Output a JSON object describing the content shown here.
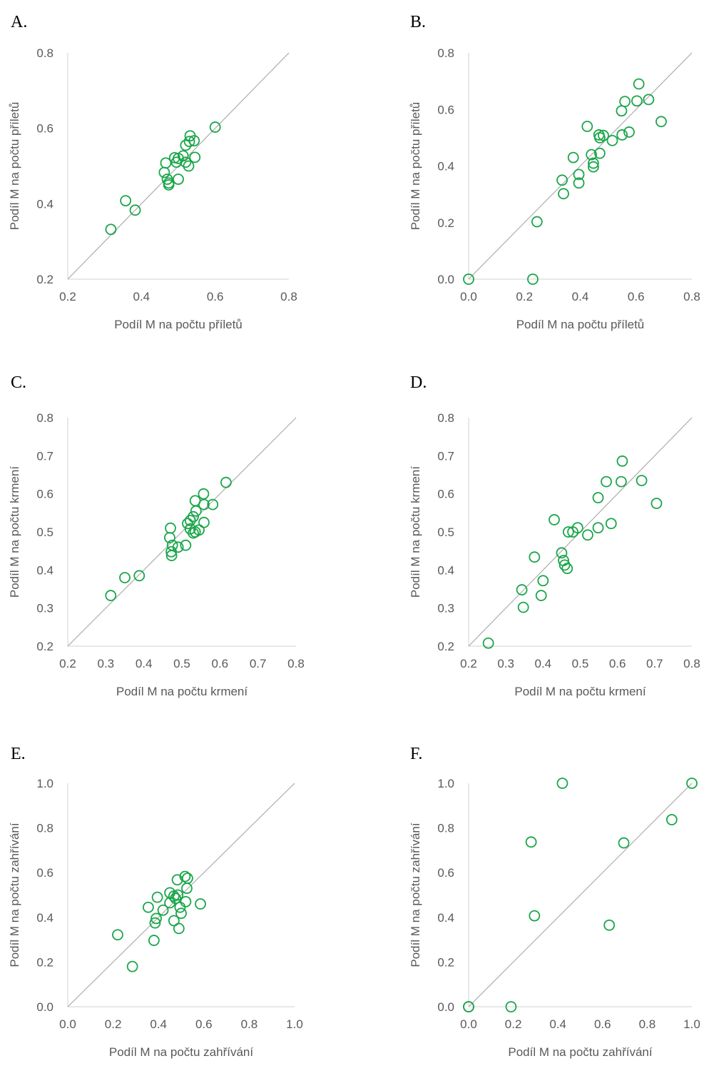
{
  "chart_data": [
    {
      "panel": "A.",
      "type": "scatter",
      "xlabel": "Podíl M na počtu příletů",
      "ylabel": "Podíl M na počtu příletů",
      "xlim": [
        0.2,
        0.8
      ],
      "ylim": [
        0.2,
        0.8
      ],
      "xticks": [
        "0.2",
        "0.4",
        "0.6",
        "0.8"
      ],
      "yticks": [
        "0.2",
        "0.4",
        "0.6",
        "0.8"
      ],
      "reference_line": "y = x",
      "points": [
        [
          0.6,
          0.603
        ],
        [
          0.532,
          0.58
        ],
        [
          0.543,
          0.567
        ],
        [
          0.53,
          0.565
        ],
        [
          0.52,
          0.555
        ],
        [
          0.5,
          0.52
        ],
        [
          0.49,
          0.522
        ],
        [
          0.513,
          0.527
        ],
        [
          0.545,
          0.523
        ],
        [
          0.495,
          0.51
        ],
        [
          0.52,
          0.51
        ],
        [
          0.528,
          0.5
        ],
        [
          0.466,
          0.508
        ],
        [
          0.462,
          0.483
        ],
        [
          0.47,
          0.465
        ],
        [
          0.5,
          0.465
        ],
        [
          0.474,
          0.455
        ],
        [
          0.474,
          0.45
        ],
        [
          0.357,
          0.408
        ],
        [
          0.383,
          0.383
        ],
        [
          0.317,
          0.332
        ]
      ]
    },
    {
      "panel": "B.",
      "type": "scatter",
      "xlabel": "Podíl M na počtu příletů",
      "ylabel": "Podíl M na počtu příletů",
      "xlim": [
        0.0,
        0.8
      ],
      "ylim": [
        0.0,
        0.8
      ],
      "xticks": [
        "0.0",
        "0.2",
        "0.4",
        "0.6",
        "0.8"
      ],
      "yticks": [
        "0.0",
        "0.2",
        "0.4",
        "0.6",
        "0.8"
      ],
      "reference_line": "y = x",
      "points": [
        [
          0.61,
          0.69
        ],
        [
          0.645,
          0.635
        ],
        [
          0.603,
          0.63
        ],
        [
          0.56,
          0.628
        ],
        [
          0.548,
          0.595
        ],
        [
          0.69,
          0.557
        ],
        [
          0.425,
          0.54
        ],
        [
          0.575,
          0.52
        ],
        [
          0.467,
          0.51
        ],
        [
          0.483,
          0.508
        ],
        [
          0.55,
          0.51
        ],
        [
          0.47,
          0.5
        ],
        [
          0.515,
          0.49
        ],
        [
          0.44,
          0.44
        ],
        [
          0.47,
          0.445
        ],
        [
          0.375,
          0.43
        ],
        [
          0.447,
          0.41
        ],
        [
          0.447,
          0.397
        ],
        [
          0.395,
          0.37
        ],
        [
          0.335,
          0.35
        ],
        [
          0.395,
          0.34
        ],
        [
          0.34,
          0.302
        ],
        [
          0.245,
          0.203
        ],
        [
          0.0,
          0.0
        ],
        [
          0.23,
          0.0
        ]
      ]
    },
    {
      "panel": "C.",
      "type": "scatter",
      "xlabel": "Podíl M na počtu krmení",
      "ylabel": "Podíl M na počtu krmení",
      "xlim": [
        0.2,
        0.8
      ],
      "ylim": [
        0.2,
        0.8
      ],
      "xticks": [
        "0.2",
        "0.3",
        "0.4",
        "0.5",
        "0.6",
        "0.7",
        "0.8"
      ],
      "yticks": [
        "0.2",
        "0.3",
        "0.4",
        "0.5",
        "0.6",
        "0.7",
        "0.8"
      ],
      "reference_line": "y = x",
      "points": [
        [
          0.616,
          0.63
        ],
        [
          0.557,
          0.6
        ],
        [
          0.535,
          0.582
        ],
        [
          0.581,
          0.572
        ],
        [
          0.558,
          0.572
        ],
        [
          0.537,
          0.555
        ],
        [
          0.53,
          0.54
        ],
        [
          0.522,
          0.53
        ],
        [
          0.558,
          0.525
        ],
        [
          0.515,
          0.522
        ],
        [
          0.47,
          0.51
        ],
        [
          0.522,
          0.508
        ],
        [
          0.545,
          0.505
        ],
        [
          0.535,
          0.5
        ],
        [
          0.53,
          0.497
        ],
        [
          0.468,
          0.485
        ],
        [
          0.51,
          0.465
        ],
        [
          0.475,
          0.465
        ],
        [
          0.49,
          0.46
        ],
        [
          0.472,
          0.448
        ],
        [
          0.473,
          0.438
        ],
        [
          0.388,
          0.385
        ],
        [
          0.35,
          0.38
        ],
        [
          0.313,
          0.333
        ]
      ]
    },
    {
      "panel": "D.",
      "type": "scatter",
      "xlabel": "Podíl M na počtu krmení",
      "ylabel": "Podíl M na počtu krmení",
      "xlim": [
        0.2,
        0.8
      ],
      "ylim": [
        0.2,
        0.8
      ],
      "xticks": [
        "0.2",
        "0.3",
        "0.4",
        "0.5",
        "0.6",
        "0.7",
        "0.8"
      ],
      "yticks": [
        "0.2",
        "0.3",
        "0.4",
        "0.5",
        "0.6",
        "0.7",
        "0.8"
      ],
      "reference_line": "y = x",
      "points": [
        [
          0.613,
          0.686
        ],
        [
          0.665,
          0.635
        ],
        [
          0.57,
          0.632
        ],
        [
          0.61,
          0.632
        ],
        [
          0.548,
          0.59
        ],
        [
          0.705,
          0.575
        ],
        [
          0.43,
          0.532
        ],
        [
          0.583,
          0.522
        ],
        [
          0.493,
          0.511
        ],
        [
          0.548,
          0.511
        ],
        [
          0.468,
          0.5
        ],
        [
          0.48,
          0.5
        ],
        [
          0.52,
          0.492
        ],
        [
          0.45,
          0.445
        ],
        [
          0.377,
          0.434
        ],
        [
          0.455,
          0.425
        ],
        [
          0.458,
          0.413
        ],
        [
          0.465,
          0.404
        ],
        [
          0.4,
          0.372
        ],
        [
          0.343,
          0.348
        ],
        [
          0.395,
          0.333
        ],
        [
          0.347,
          0.302
        ],
        [
          0.253,
          0.208
        ]
      ]
    },
    {
      "panel": "E.",
      "type": "scatter",
      "xlabel": "Podíl M na počtu zahřívání",
      "ylabel": "Podíl M na počtu zahřívání",
      "xlim": [
        0.0,
        1.0
      ],
      "ylim": [
        0.0,
        1.0
      ],
      "xticks": [
        "0.0",
        "0.2",
        "0.4",
        "0.6",
        "0.8",
        "1.0"
      ],
      "yticks": [
        "0.0",
        "0.2",
        "0.4",
        "0.6",
        "0.8",
        "1.0"
      ],
      "reference_line": "y = x",
      "points": [
        [
          0.517,
          0.583
        ],
        [
          0.528,
          0.575
        ],
        [
          0.483,
          0.568
        ],
        [
          0.525,
          0.53
        ],
        [
          0.45,
          0.51
        ],
        [
          0.485,
          0.5
        ],
        [
          0.468,
          0.495
        ],
        [
          0.395,
          0.49
        ],
        [
          0.475,
          0.485
        ],
        [
          0.52,
          0.47
        ],
        [
          0.45,
          0.465
        ],
        [
          0.585,
          0.46
        ],
        [
          0.495,
          0.445
        ],
        [
          0.355,
          0.445
        ],
        [
          0.42,
          0.432
        ],
        [
          0.5,
          0.418
        ],
        [
          0.39,
          0.395
        ],
        [
          0.468,
          0.385
        ],
        [
          0.385,
          0.375
        ],
        [
          0.49,
          0.35
        ],
        [
          0.22,
          0.322
        ],
        [
          0.38,
          0.297
        ],
        [
          0.285,
          0.18
        ]
      ]
    },
    {
      "panel": "F.",
      "type": "scatter",
      "xlabel": "Podíl M na počtu zahřívání",
      "ylabel": "Podíl M na počtu zahřívání",
      "xlim": [
        0.0,
        1.0
      ],
      "ylim": [
        0.0,
        1.0
      ],
      "xticks": [
        "0.0",
        "0.2",
        "0.4",
        "0.6",
        "0.8",
        "1.0"
      ],
      "yticks": [
        "0.0",
        "0.2",
        "0.4",
        "0.6",
        "0.8",
        "1.0"
      ],
      "reference_line": "y = x",
      "points": [
        [
          0.42,
          1.0
        ],
        [
          1.0,
          1.0
        ],
        [
          0.91,
          0.837
        ],
        [
          0.28,
          0.737
        ],
        [
          0.695,
          0.733
        ],
        [
          0.295,
          0.407
        ],
        [
          0.63,
          0.365
        ],
        [
          0.0,
          0.0
        ],
        [
          0.0,
          0.0
        ],
        [
          0.19,
          0.0
        ]
      ]
    }
  ],
  "colors": {
    "marker": "#1aa64a",
    "tick_text": "#595959",
    "axis_line": "#d9d9d9",
    "diagonal": "#a6a6a6"
  }
}
